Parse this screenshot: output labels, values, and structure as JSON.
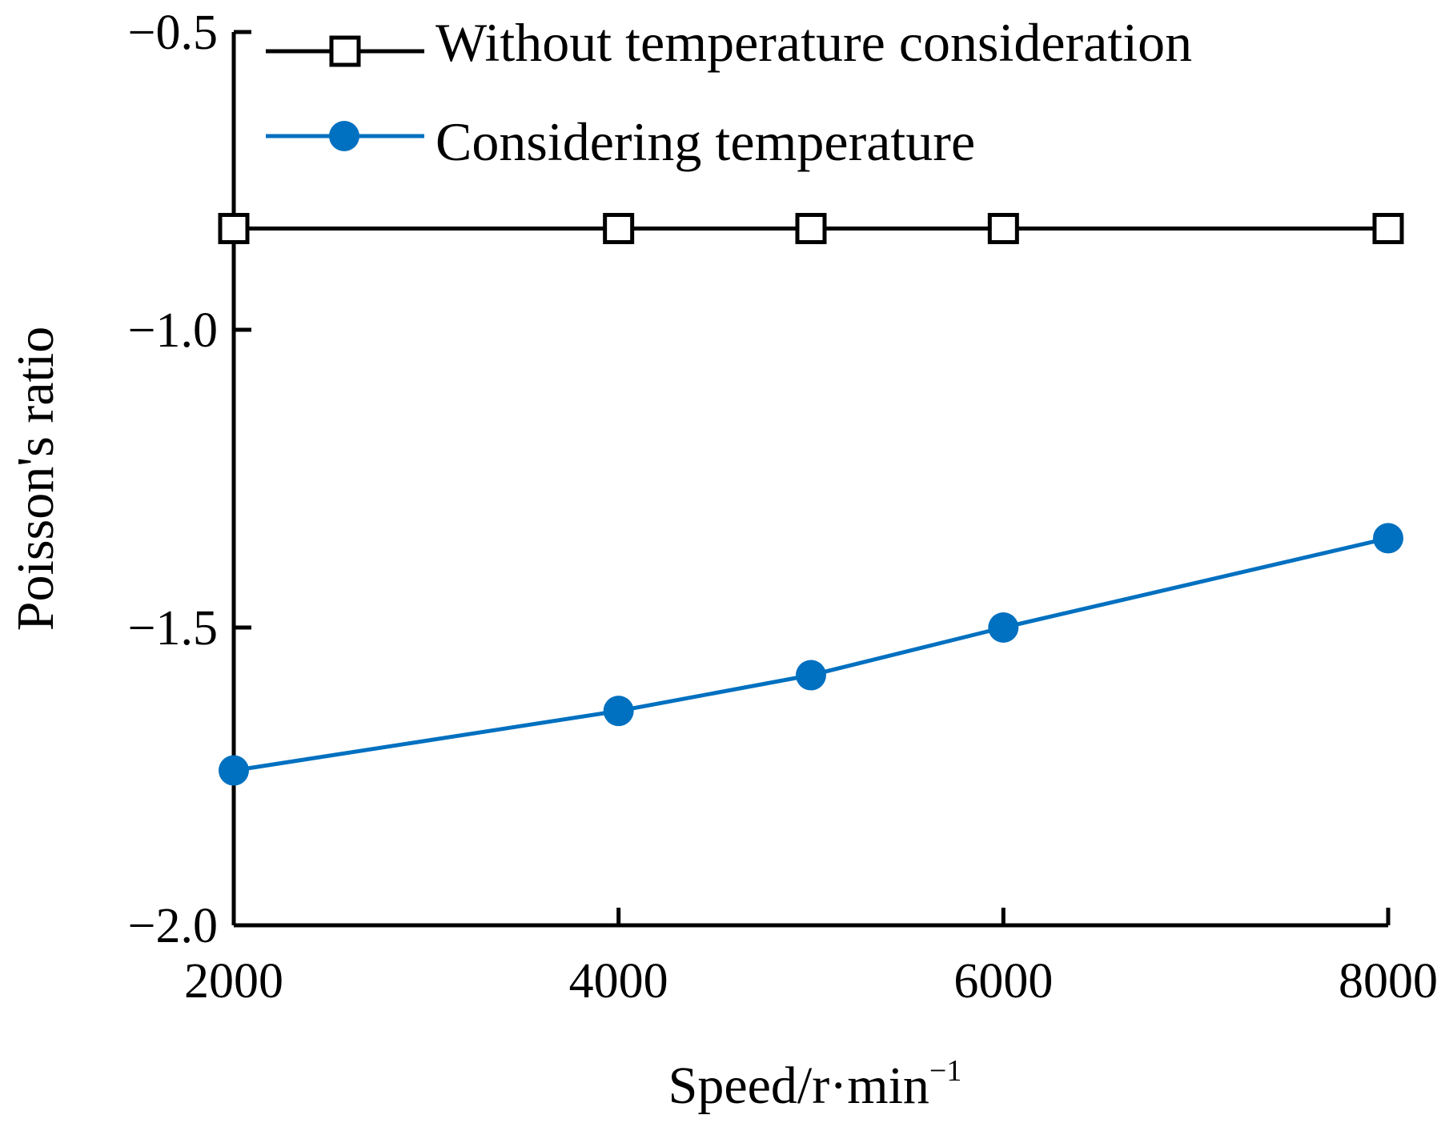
{
  "chart_data": {
    "type": "line",
    "title": "",
    "xlabel": "Speed/r·min",
    "xlabel_sup": "−1",
    "ylabel": "Poisson's ratio",
    "x": [
      2000,
      4000,
      5000,
      6000,
      8000
    ],
    "xlim": [
      2000,
      8000
    ],
    "ylim": [
      -2.0,
      -0.5
    ],
    "xticks": [
      2000,
      4000,
      6000,
      8000
    ],
    "xtick_labels": [
      "2000",
      "4000",
      "6000",
      "8000"
    ],
    "yticks": [
      -0.5,
      -1.0,
      -1.5,
      -2.0
    ],
    "ytick_labels": [
      "−0.5",
      "−1.0",
      "−1.5",
      "−2.0"
    ],
    "grid": false,
    "legend_position": "top",
    "series": [
      {
        "name": "Without temperature consideration",
        "values": [
          -0.83,
          -0.83,
          -0.83,
          -0.83,
          -0.83
        ],
        "color": "#000000",
        "marker": "open-square"
      },
      {
        "name": "Considering temperature",
        "values": [
          -1.74,
          -1.64,
          -1.58,
          -1.5,
          -1.35
        ],
        "color": "#0070c0",
        "marker": "filled-circle"
      }
    ]
  }
}
